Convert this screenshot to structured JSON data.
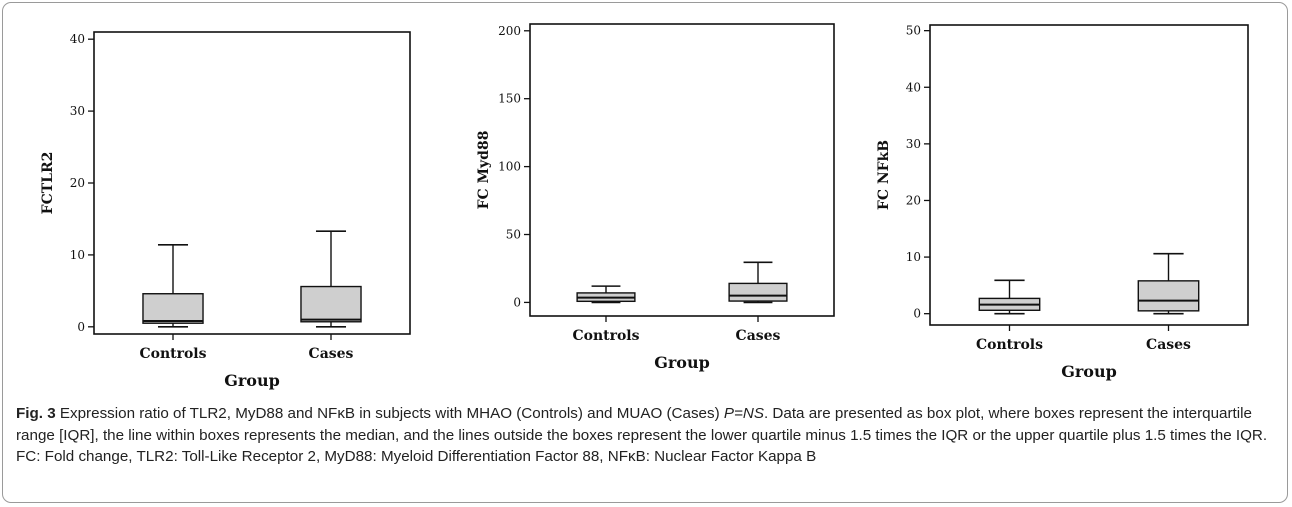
{
  "figure": {
    "caption_label": "Fig. 3",
    "caption_part1": " Expression ratio of TLR2, MyD88 and NFκB in subjects with MHAO (Controls) and MUAO (Cases) ",
    "caption_p": "P=NS",
    "caption_part2": ". Data are presented as box plot, where boxes represent the interquartile range [IQR], the line within boxes represents the median, and the lines outside the boxes represent the lower quartile minus 1.5 times the IQR or the upper quartile plus 1.5 times the IQR. FC: Fold change, TLR2: Toll-Like Receptor 2, MyD88: Myeloid Differentiation Factor 88, NFκB: Nuclear Factor Kappa B"
  },
  "colors": {
    "box_fill": "#cfcfcf",
    "line": "#111111",
    "frame": "#9a9a9a"
  },
  "chart_data": [
    {
      "type": "box",
      "xlabel": "Group",
      "ylabel": "FCTLR2",
      "ylim": [
        -1,
        41
      ],
      "yticks": [
        "0",
        "10",
        "20",
        "30",
        "40"
      ],
      "ytick_values": [
        0,
        10,
        20,
        30,
        40
      ],
      "categories": [
        "Controls",
        "Cases"
      ],
      "boxes": [
        {
          "min": 0.0,
          "q1": 0.5,
          "median": 0.8,
          "q3": 4.6,
          "max": 11.4
        },
        {
          "min": 0.0,
          "q1": 0.7,
          "median": 1.0,
          "q3": 5.6,
          "max": 13.3
        }
      ]
    },
    {
      "type": "box",
      "xlabel": "Group",
      "ylabel": "FC Myd88",
      "ylim": [
        -10,
        205
      ],
      "yticks": [
        "0",
        "50",
        "100",
        "150",
        "200"
      ],
      "ytick_values": [
        0,
        50,
        100,
        150,
        200
      ],
      "categories": [
        "Controls",
        "Cases"
      ],
      "boxes": [
        {
          "min": 0.0,
          "q1": 0.8,
          "median": 3.5,
          "q3": 7.0,
          "max": 12.0
        },
        {
          "min": 0.0,
          "q1": 1.0,
          "median": 5.0,
          "q3": 14.0,
          "max": 29.5
        }
      ]
    },
    {
      "type": "box",
      "xlabel": "Group",
      "ylabel": "FC NFkB",
      "ylim": [
        -2,
        51
      ],
      "yticks": [
        "0",
        "10",
        "20",
        "30",
        "40",
        "50"
      ],
      "ytick_values": [
        0,
        10,
        20,
        30,
        40,
        50
      ],
      "categories": [
        "Controls",
        "Cases"
      ],
      "boxes": [
        {
          "min": 0.0,
          "q1": 0.6,
          "median": 1.6,
          "q3": 2.7,
          "max": 5.9
        },
        {
          "min": 0.0,
          "q1": 0.5,
          "median": 2.3,
          "q3": 5.8,
          "max": 10.6
        }
      ]
    }
  ]
}
